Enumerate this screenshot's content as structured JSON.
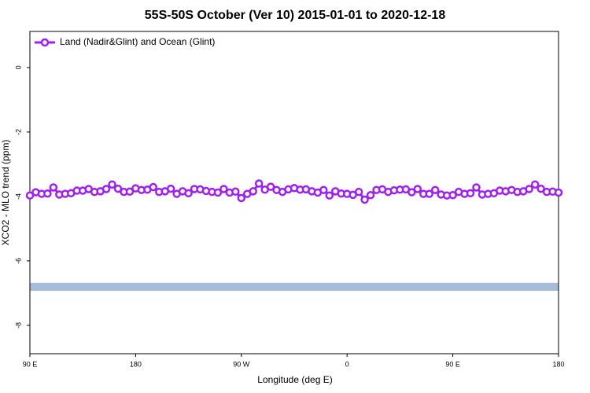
{
  "chart_data": {
    "type": "line",
    "title": "55S-50S October (Ver 10)   2015-01-01 to 2020-12-18",
    "x_label": "Longitude (deg E)",
    "y_label": "XCO2 - MLO trend (ppm)",
    "x": [
      90,
      95,
      100,
      105,
      110,
      115,
      120,
      125,
      130,
      135,
      140,
      145,
      150,
      155,
      160,
      165,
      170,
      175,
      180,
      185,
      190,
      195,
      200,
      205,
      210,
      215,
      220,
      225,
      230,
      235,
      240,
      245,
      250,
      255,
      260,
      265,
      270,
      275,
      280,
      285,
      290,
      295,
      300,
      305,
      310,
      315,
      320,
      325,
      330,
      335,
      340,
      345,
      350,
      355,
      360,
      365,
      370,
      375,
      380,
      385,
      390,
      395,
      400,
      405,
      410,
      415,
      420,
      425,
      430,
      435,
      440,
      445,
      450,
      455,
      460,
      465,
      470,
      475,
      480,
      485,
      490,
      495,
      500,
      505,
      510,
      515,
      520,
      525,
      530,
      535,
      540
    ],
    "series": [
      {
        "name": "Land (Nadir&Glint) and Ocean (Glint)",
        "color": "#a020f0",
        "values": [
          -3.97,
          -3.87,
          -3.92,
          -3.91,
          -3.72,
          -3.94,
          -3.92,
          -3.9,
          -3.82,
          -3.82,
          -3.77,
          -3.86,
          -3.84,
          -3.77,
          -3.63,
          -3.76,
          -3.86,
          -3.85,
          -3.75,
          -3.8,
          -3.79,
          -3.71,
          -3.86,
          -3.84,
          -3.76,
          -3.92,
          -3.84,
          -3.9,
          -3.77,
          -3.78,
          -3.83,
          -3.86,
          -3.88,
          -3.77,
          -3.88,
          -3.85,
          -4.05,
          -3.92,
          -3.84,
          -3.6,
          -3.79,
          -3.7,
          -3.8,
          -3.86,
          -3.78,
          -3.74,
          -3.79,
          -3.78,
          -3.84,
          -3.88,
          -3.8,
          -3.97,
          -3.84,
          -3.91,
          -3.92,
          -3.95,
          -3.86,
          -4.1,
          -3.96,
          -3.8,
          -3.78,
          -3.86,
          -3.81,
          -3.79,
          -3.78,
          -3.87,
          -3.77,
          -3.92,
          -3.92,
          -3.8,
          -3.94,
          -3.97,
          -3.96,
          -3.86,
          -3.92,
          -3.9,
          -3.72,
          -3.94,
          -3.92,
          -3.9,
          -3.82,
          -3.84,
          -3.8,
          -3.86,
          -3.84,
          -3.77,
          -3.63,
          -3.76,
          -3.86,
          -3.85,
          -3.88
        ]
      }
    ],
    "xlim": [
      90,
      540
    ],
    "xticks": [
      {
        "value": 90,
        "label": "90 E"
      },
      180,
      {
        "value": 270,
        "label": "90 W"
      },
      {
        "value": 360,
        "label": "0"
      },
      {
        "value": 450,
        "label": "90 E"
      },
      {
        "value": 540,
        "label": "180"
      }
    ],
    "ylim": [
      -8.88,
      1.12
    ],
    "yticks": [
      0,
      -2,
      -4,
      -6,
      -8
    ],
    "band": {
      "ylim": [
        -6.93,
        -6.68
      ],
      "color": "#a7bcd9"
    },
    "legend": "top-left"
  }
}
